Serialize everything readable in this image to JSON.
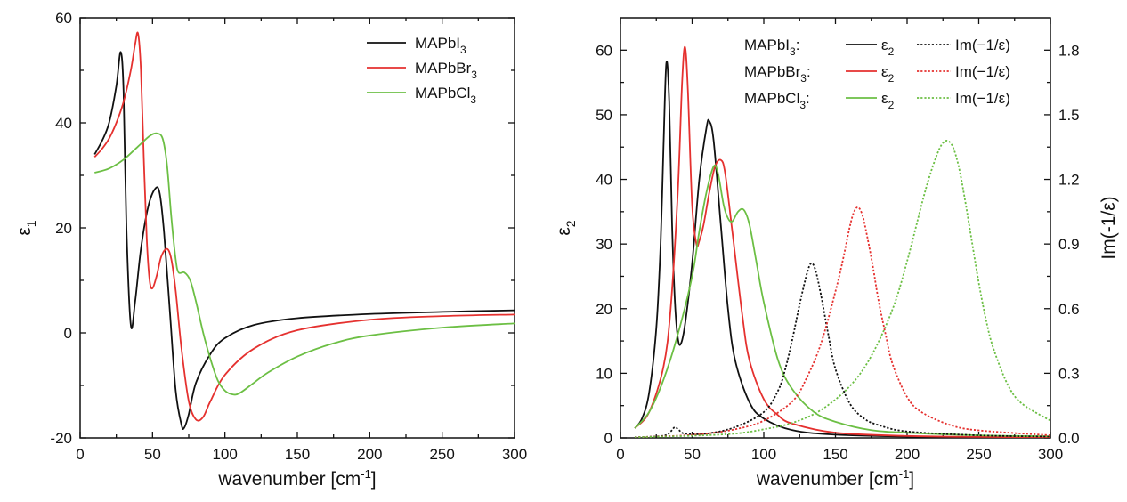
{
  "chart_data": [
    {
      "type": "line",
      "panel": "left",
      "xlabel_base": "wavenumber [cm",
      "xlabel_sup": "-1",
      "xlabel_end": "]",
      "ylabel_base": "ε",
      "ylabel_sub": "1",
      "xlim": [
        0,
        300
      ],
      "ylim": [
        -20,
        60
      ],
      "xticks": [
        0,
        50,
        100,
        150,
        200,
        250,
        300
      ],
      "yticks": [
        -20,
        0,
        20,
        40,
        60
      ],
      "legend_position": "top-right",
      "series": [
        {
          "name_base": "MAPbI",
          "name_sub": "3",
          "color": "#111111",
          "x": [
            10,
            15,
            20,
            25,
            28,
            30,
            32,
            35,
            38,
            42,
            47,
            52,
            55,
            58,
            62,
            66,
            70,
            72,
            75,
            80,
            90,
            100,
            120,
            150,
            200,
            250,
            300
          ],
          "y": [
            34,
            36.5,
            40,
            47,
            53.5,
            46,
            20,
            1.5,
            6,
            16,
            24,
            27.5,
            26.5,
            19,
            4,
            -11,
            -17.5,
            -18,
            -15.5,
            -9.5,
            -4,
            -1,
            1.5,
            2.8,
            3.6,
            4,
            4.3
          ]
        },
        {
          "name_base": "MAPbBr",
          "name_sub": "3",
          "color": "#e5312f",
          "x": [
            10,
            15,
            20,
            25,
            30,
            35,
            38,
            40,
            42,
            44,
            46,
            48,
            50,
            53,
            56,
            60,
            63,
            66,
            70,
            75,
            80,
            85,
            90,
            100,
            120,
            150,
            200,
            250,
            300
          ],
          "y": [
            33.5,
            35,
            37,
            40,
            44,
            50,
            55,
            57,
            50,
            33,
            18,
            10,
            8.5,
            11,
            14.5,
            16,
            14,
            8,
            -3,
            -13,
            -16.5,
            -16,
            -13,
            -8,
            -3,
            0.5,
            2.5,
            3.2,
            3.5
          ]
        },
        {
          "name_base": "MAPbCl",
          "name_sub": "3",
          "color": "#6cbf44",
          "x": [
            10,
            20,
            30,
            40,
            48,
            53,
            57,
            60,
            63,
            66,
            68,
            72,
            76,
            80,
            85,
            90,
            95,
            100,
            105,
            110,
            120,
            130,
            150,
            175,
            200,
            250,
            300
          ],
          "y": [
            30.5,
            31.3,
            33,
            35.5,
            37.5,
            38,
            37,
            32,
            22,
            14,
            11.5,
            11.5,
            10,
            6,
            0,
            -5,
            -9,
            -11,
            -11.7,
            -11.5,
            -9.5,
            -7.5,
            -4.5,
            -2,
            -0.5,
            1,
            1.8
          ]
        }
      ]
    },
    {
      "type": "line",
      "panel": "right",
      "xlabel_base": "wavenumber [cm",
      "xlabel_sup": "-1",
      "xlabel_end": "]",
      "ylabel_base": "ε",
      "ylabel_sub": "2",
      "y2label": "Im(-1/ε)",
      "xlim": [
        0,
        300
      ],
      "ylim": [
        0,
        65
      ],
      "y2lim": [
        0,
        1.95
      ],
      "xticks": [
        0,
        50,
        100,
        150,
        200,
        250,
        300
      ],
      "yticks": [
        0,
        10,
        20,
        30,
        40,
        50,
        60
      ],
      "y2ticks": [
        0.0,
        0.3,
        0.6,
        0.9,
        1.2,
        1.5,
        1.8
      ],
      "y2tick_labels": [
        "0.0",
        "0.3",
        "0.6",
        "0.9",
        "1.2",
        "1.5",
        "1.8"
      ],
      "legend_position": "top-right",
      "legend_eps_base": "ε",
      "legend_eps_sub": "2",
      "legend_loss_label": "Im(−1/ε)",
      "legend_rows": [
        {
          "name_base": "MAPbI",
          "name_sub": "3",
          "suffix": ":",
          "color": "#111111"
        },
        {
          "name_base": "MAPbBr",
          "name_sub": "3",
          "suffix": ":",
          "color": "#e5312f"
        },
        {
          "name_base": "MAPbCl",
          "name_sub": "3",
          "suffix": ":",
          "color": "#6cbf44"
        }
      ],
      "series": [
        {
          "color": "#111111",
          "style": "solid",
          "axis": "left",
          "x": [
            10,
            15,
            20,
            25,
            28,
            30,
            32,
            34,
            36,
            38,
            40,
            42,
            45,
            50,
            55,
            60,
            62,
            65,
            70,
            75,
            80,
            90,
            100,
            120,
            150,
            200,
            250,
            300
          ],
          "y": [
            1.5,
            3,
            7,
            17,
            30,
            45,
            58,
            52,
            33,
            21,
            15.5,
            14.5,
            17.5,
            27,
            40,
            48,
            49,
            46,
            33,
            20,
            12,
            5.5,
            3,
            1.2,
            0.5,
            0.2,
            0.1,
            0.1
          ]
        },
        {
          "color": "#e5312f",
          "style": "solid",
          "axis": "left",
          "x": [
            10,
            20,
            30,
            35,
            40,
            43,
            45,
            47,
            50,
            53,
            55,
            58,
            62,
            66,
            70,
            73,
            78,
            85,
            90,
            100,
            110,
            120,
            150,
            200,
            250,
            300
          ],
          "y": [
            1.5,
            4,
            11,
            20,
            38,
            55,
            60.5,
            54,
            36,
            30,
            30.5,
            33,
            38,
            42,
            43,
            41,
            32,
            19,
            12,
            6,
            3.5,
            2.2,
            0.8,
            0.3,
            0.15,
            0.1
          ]
        },
        {
          "color": "#6cbf44",
          "style": "solid",
          "axis": "left",
          "x": [
            10,
            20,
            30,
            40,
            50,
            55,
            60,
            65,
            68,
            72,
            75,
            78,
            82,
            86,
            90,
            95,
            100,
            110,
            120,
            135,
            150,
            175,
            200,
            250,
            300
          ],
          "y": [
            1.5,
            4,
            9,
            16,
            25,
            32,
            38,
            42,
            41,
            36,
            34,
            33.5,
            35,
            35.3,
            33,
            27,
            21,
            12,
            7.5,
            4,
            2.5,
            1.2,
            0.8,
            0.4,
            0.25
          ]
        },
        {
          "color": "#111111",
          "style": "dotted",
          "axis": "right",
          "x": [
            10,
            30,
            35,
            38,
            41,
            45,
            60,
            80,
            100,
            110,
            115,
            120,
            125,
            130,
            133,
            136,
            140,
            145,
            150,
            160,
            170,
            180,
            200,
            250,
            300
          ],
          "y": [
            0.003,
            0.01,
            0.03,
            0.05,
            0.035,
            0.02,
            0.02,
            0.05,
            0.12,
            0.22,
            0.32,
            0.46,
            0.62,
            0.76,
            0.81,
            0.78,
            0.66,
            0.48,
            0.32,
            0.16,
            0.09,
            0.06,
            0.03,
            0.012,
            0.006
          ]
        },
        {
          "color": "#e5312f",
          "style": "dotted",
          "axis": "right",
          "x": [
            10,
            40,
            60,
            80,
            100,
            120,
            130,
            140,
            150,
            155,
            160,
            163,
            166,
            169,
            172,
            176,
            180,
            185,
            190,
            200,
            210,
            230,
            250,
            300
          ],
          "y": [
            0.003,
            0.01,
            0.02,
            0.04,
            0.08,
            0.17,
            0.28,
            0.44,
            0.68,
            0.82,
            0.98,
            1.05,
            1.07,
            1.03,
            0.94,
            0.8,
            0.64,
            0.48,
            0.34,
            0.19,
            0.12,
            0.06,
            0.035,
            0.012
          ]
        },
        {
          "color": "#6cbf44",
          "style": "dotted",
          "axis": "right",
          "x": [
            10,
            50,
            80,
            100,
            120,
            140,
            160,
            175,
            190,
            200,
            210,
            215,
            220,
            224,
            228,
            232,
            236,
            240,
            245,
            250,
            255,
            260,
            270,
            280,
            300
          ],
          "y": [
            0.003,
            0.01,
            0.02,
            0.04,
            0.07,
            0.13,
            0.24,
            0.38,
            0.6,
            0.82,
            1.08,
            1.2,
            1.3,
            1.36,
            1.38,
            1.35,
            1.26,
            1.12,
            0.92,
            0.72,
            0.55,
            0.42,
            0.25,
            0.16,
            0.08
          ]
        }
      ]
    }
  ]
}
